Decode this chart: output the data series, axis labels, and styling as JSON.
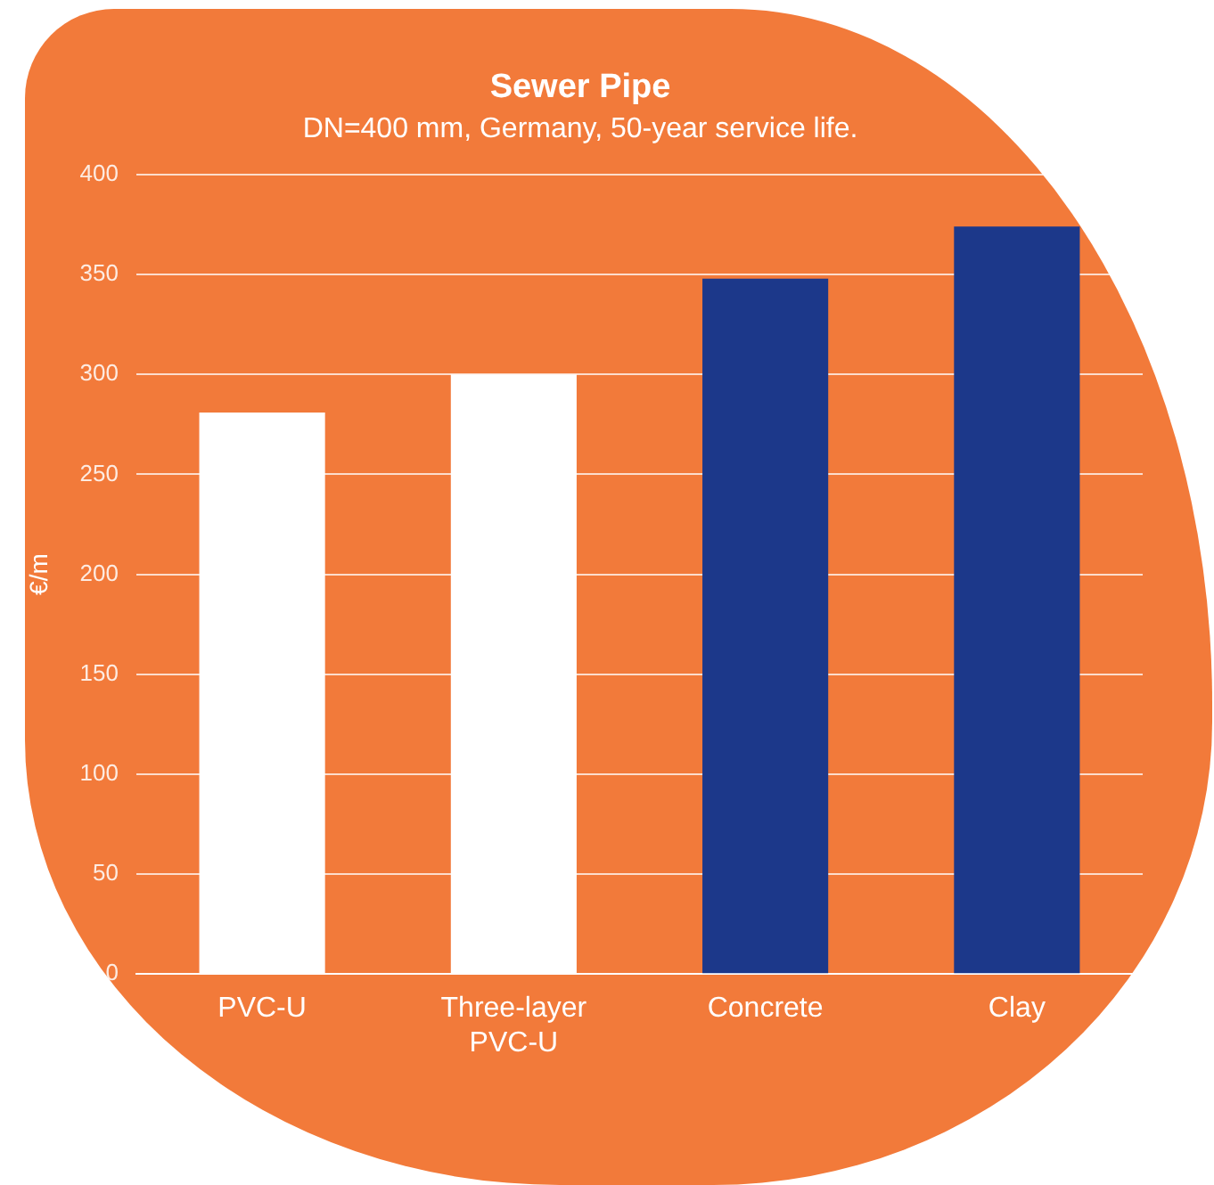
{
  "chart_data": {
    "type": "bar",
    "title": "Sewer Pipe",
    "subtitle": "DN=400 mm, Germany, 50-year service life.",
    "ylabel": "€/m",
    "categories": [
      "PVC-U",
      "Three-layer PVC-U",
      "Concrete",
      "Clay"
    ],
    "values": [
      281,
      300,
      348,
      374
    ],
    "colors": [
      "#ffffff",
      "#ffffff",
      "#1c388a",
      "#1c388a"
    ],
    "ylim": [
      0,
      400
    ],
    "yticks": [
      0,
      50,
      100,
      150,
      200,
      250,
      300,
      350,
      400
    ],
    "grid": "y",
    "legend": false
  }
}
